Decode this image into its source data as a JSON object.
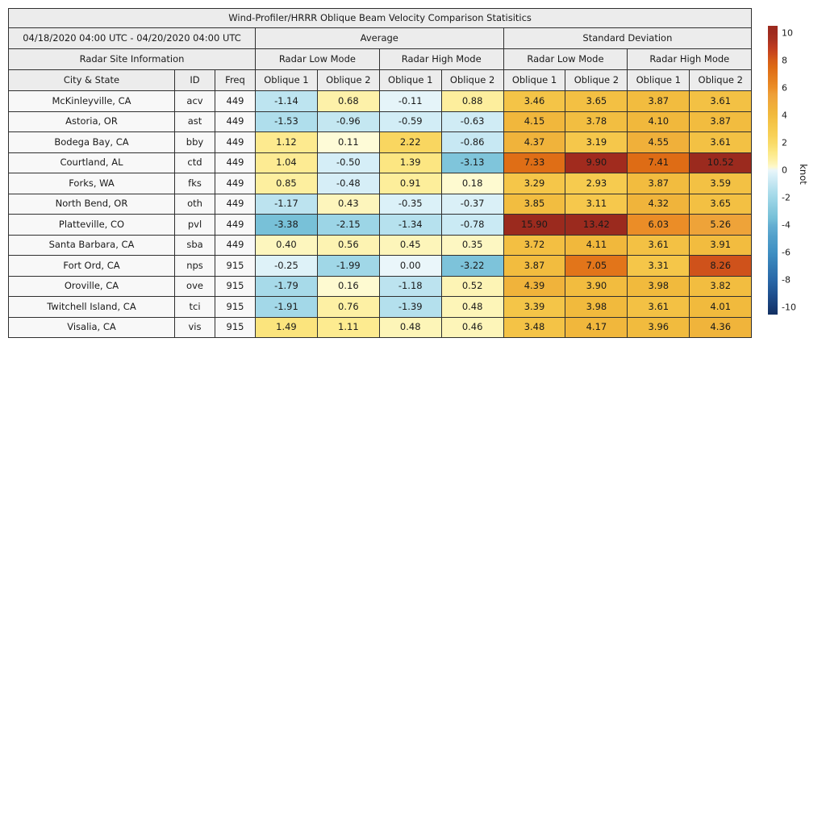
{
  "title": "Wind-Profiler/HRRR Oblique Beam Velocity Comparison Statisitics",
  "header": {
    "date_range": "04/18/2020 04:00 UTC - 04/20/2020 04:00 UTC",
    "group_average": "Average",
    "group_std": "Standard Deviation",
    "radar_site_info": "Radar Site Information",
    "mode_low": "Radar Low Mode",
    "mode_high": "Radar High Mode",
    "col_city": "City & State",
    "col_id": "ID",
    "col_freq": "Freq",
    "col_oblique1": "Oblique 1",
    "col_oblique2": "Oblique 2"
  },
  "colors": {
    "header_bg": "#ececec",
    "label_cell_bg": "#f8f8f8",
    "border": "#2f2f2f",
    "colormap_warm": [
      [
        0,
        "#fffde4"
      ],
      [
        0.15,
        "#fefad2"
      ],
      [
        0.45,
        "#fdf5ba"
      ],
      [
        0.7,
        "#fdf1a8"
      ],
      [
        1,
        "#fdec95"
      ],
      [
        1.3,
        "#fce886"
      ],
      [
        1.6,
        "#fbe277"
      ],
      [
        2,
        "#f9da67"
      ],
      [
        2.5,
        "#f8d158"
      ],
      [
        3,
        "#f6ca4e"
      ],
      [
        3.5,
        "#f4c346"
      ],
      [
        4,
        "#f1ba3d"
      ],
      [
        4.5,
        "#f0b13a"
      ],
      [
        5,
        "#efa83a"
      ],
      [
        5.5,
        "#ee9f38"
      ],
      [
        6,
        "#eb8e27"
      ],
      [
        6.5,
        "#e68120"
      ],
      [
        7,
        "#e2761b"
      ],
      [
        7.5,
        "#dd6a14"
      ],
      [
        8,
        "#d55c18"
      ],
      [
        8.5,
        "#c9481d"
      ],
      [
        9,
        "#bc3a20"
      ],
      [
        9.5,
        "#a93120"
      ],
      [
        10,
        "#9f2a1e"
      ],
      [
        10.5,
        "#9b2a1e"
      ]
    ],
    "colormap_cool": [
      [
        -10.5,
        "#123061"
      ],
      [
        -10,
        "#163a72"
      ],
      [
        -9,
        "#1f5190"
      ],
      [
        -8,
        "#2968a8"
      ],
      [
        -7,
        "#337bb4"
      ],
      [
        -6,
        "#3f8fc2"
      ],
      [
        -5,
        "#4f9dc9"
      ],
      [
        -4,
        "#64aed2"
      ],
      [
        -3.5,
        "#75bfd7"
      ],
      [
        -3,
        "#83c7dc"
      ],
      [
        -2.5,
        "#91cfe2"
      ],
      [
        -2,
        "#a0d7e7"
      ],
      [
        -1.5,
        "#b0deec"
      ],
      [
        -1,
        "#c2e6f1"
      ],
      [
        -0.5,
        "#d5eef7"
      ],
      [
        -0.2,
        "#e0f3f8"
      ],
      [
        0,
        "#eaf6fa"
      ]
    ]
  },
  "chart_data": {
    "type": "table",
    "title": "Wind-Profiler/HRRR Oblique Beam Velocity Comparison Statisitics",
    "date_range": "04/18/2020 04:00 UTC - 04/20/2020 04:00 UTC",
    "column_groups": [
      "Average",
      "Standard Deviation"
    ],
    "mode_subgroups": [
      "Radar Low Mode",
      "Radar High Mode"
    ],
    "value_columns": [
      "Avg Low Oblique 1",
      "Avg Low Oblique 2",
      "Avg High Oblique 1",
      "Avg High Oblique 2",
      "Std Low Oblique 1",
      "Std Low Oblique 2",
      "Std High Oblique 1",
      "Std High Oblique 2"
    ],
    "rows": [
      {
        "city": "McKinleyville, CA",
        "id": "acv",
        "freq": "449",
        "values": [
          -1.14,
          0.68,
          -0.11,
          0.88,
          3.46,
          3.65,
          3.87,
          3.61
        ]
      },
      {
        "city": "Astoria, OR",
        "id": "ast",
        "freq": "449",
        "values": [
          -1.53,
          -0.96,
          -0.59,
          -0.63,
          4.15,
          3.78,
          4.1,
          3.87
        ]
      },
      {
        "city": "Bodega Bay, CA",
        "id": "bby",
        "freq": "449",
        "values": [
          1.12,
          0.11,
          2.22,
          -0.86,
          4.37,
          3.19,
          4.55,
          3.61
        ]
      },
      {
        "city": "Courtland, AL",
        "id": "ctd",
        "freq": "449",
        "values": [
          1.04,
          -0.5,
          1.39,
          -3.13,
          7.33,
          9.9,
          7.41,
          10.52
        ]
      },
      {
        "city": "Forks, WA",
        "id": "fks",
        "freq": "449",
        "values": [
          0.85,
          -0.48,
          0.91,
          0.18,
          3.29,
          2.93,
          3.87,
          3.59
        ]
      },
      {
        "city": "North Bend, OR",
        "id": "oth",
        "freq": "449",
        "values": [
          -1.17,
          0.43,
          -0.35,
          -0.37,
          3.85,
          3.11,
          4.32,
          3.65
        ]
      },
      {
        "city": "Platteville, CO",
        "id": "pvl",
        "freq": "449",
        "values": [
          -3.38,
          -2.15,
          -1.34,
          -0.78,
          15.9,
          13.42,
          6.03,
          5.26
        ]
      },
      {
        "city": "Santa Barbara, CA",
        "id": "sba",
        "freq": "449",
        "values": [
          0.4,
          0.56,
          0.45,
          0.35,
          3.72,
          4.11,
          3.61,
          3.91
        ]
      },
      {
        "city": "Fort Ord, CA",
        "id": "nps",
        "freq": "915",
        "values": [
          -0.25,
          -1.99,
          0.0,
          -3.22,
          3.87,
          7.05,
          3.31,
          8.26
        ]
      },
      {
        "city": "Oroville, CA",
        "id": "ove",
        "freq": "915",
        "values": [
          -1.79,
          0.16,
          -1.18,
          0.52,
          4.39,
          3.9,
          3.98,
          3.82
        ]
      },
      {
        "city": "Twitchell Island, CA",
        "id": "tci",
        "freq": "915",
        "values": [
          -1.91,
          0.76,
          -1.39,
          0.48,
          3.39,
          3.98,
          3.61,
          4.01
        ]
      },
      {
        "city": "Visalia, CA",
        "id": "vis",
        "freq": "915",
        "values": [
          1.49,
          1.11,
          0.48,
          0.46,
          3.48,
          4.17,
          3.96,
          4.36
        ]
      }
    ],
    "colorbar": {
      "label": "knot",
      "vmin": -10,
      "vmax": 10,
      "display_min": -10.5,
      "display_max": 10.5,
      "ticks": [
        10,
        8,
        6,
        4,
        2,
        0,
        -2,
        -4,
        -6,
        -8,
        -10
      ]
    }
  }
}
